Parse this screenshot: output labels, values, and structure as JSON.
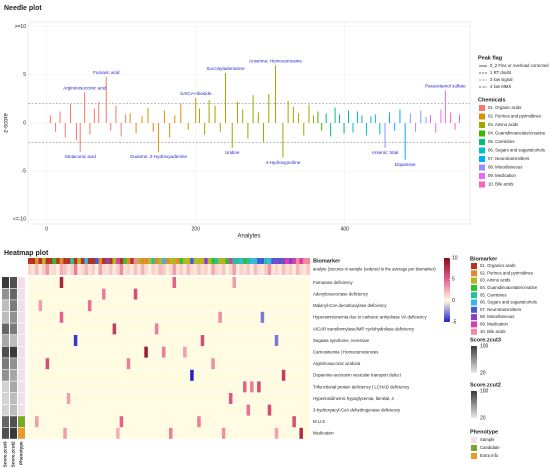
{
  "chart_data": [
    {
      "type": "needle",
      "title": "Needle plot",
      "xlabel": "Analytes",
      "ylabel": "z-score",
      "xlim": [
        -25,
        568
      ],
      "xticks": [
        0,
        200,
        400
      ],
      "ylim": [
        -10.5,
        10.5
      ],
      "yticks": [
        {
          "value": -10,
          "label": "<=-10"
        },
        -5,
        0,
        5,
        {
          "value": 10,
          "label": ">=10"
        }
      ],
      "hlines": [
        -2,
        2
      ],
      "grid": true,
      "flag_title": "Peak flag",
      "flags": [
        {
          "name": "0_2 Fine or overload corrected",
          "dash": "solid"
        },
        {
          "name": "1 RT doubt",
          "dash": "dashed"
        },
        {
          "name": "3 low signal",
          "dash": "dotted"
        },
        {
          "name": "4 low MMS",
          "dash": "dotdash"
        }
      ],
      "legend_title": "Chemicals",
      "series": [
        {
          "name": "01. Organic acids",
          "color": "#f8766d",
          "x": [
            5,
            12,
            18,
            25,
            32,
            40,
            45,
            51,
            58,
            64,
            70,
            80,
            86,
            93,
            100,
            106
          ],
          "values": [
            0.8,
            -0.9,
            1.2,
            -1.5,
            2.0,
            -1.8,
            -3.0,
            3.2,
            -1.2,
            1.5,
            2.2,
            4.8,
            -0.8,
            1.8,
            -1.4,
            0.9
          ]
        },
        {
          "name": "02. Purines and pyrimidines",
          "color": "#d89000",
          "x": [
            112,
            120,
            128,
            136,
            143,
            150,
            158,
            165,
            172,
            180,
            190,
            200
          ],
          "values": [
            1.0,
            -1.1,
            0.7,
            1.6,
            -0.9,
            -3.0,
            1.3,
            -1.5,
            0.8,
            2.0,
            -0.7,
            2.6
          ]
        },
        {
          "name": "03. Amino acids",
          "color": "#a3a500",
          "x": [
            205,
            212,
            218,
            226,
            233,
            240,
            249,
            256,
            263,
            270,
            277,
            284,
            291,
            298,
            307,
            317,
            324,
            331,
            338,
            345,
            352,
            358
          ],
          "values": [
            1.5,
            -1.2,
            2.4,
            1.8,
            -0.9,
            5.2,
            -2.6,
            2.2,
            1.4,
            -1.6,
            2.9,
            1.1,
            -2.0,
            3.0,
            6.0,
            -3.6,
            2.3,
            1.7,
            1.0,
            -1.3,
            1.9,
            0.8
          ]
        },
        {
          "name": "04. Guanidinoacetate/creatine",
          "color": "#39b600",
          "x": [
            364,
            369
          ],
          "values": [
            1.2,
            -0.8
          ]
        },
        {
          "name": "05. Carnitines",
          "color": "#00bf7d",
          "x": [
            375,
            381,
            387,
            393,
            399,
            405
          ],
          "values": [
            1.0,
            -1.4,
            1.6,
            0.9,
            -1.1,
            1.3
          ]
        },
        {
          "name": "06. Sugars and sugaralcohols",
          "color": "#00bfc4",
          "x": [
            411,
            417,
            423,
            429,
            435
          ],
          "values": [
            -1.0,
            1.2,
            0.8,
            -1.3,
            0.7
          ]
        },
        {
          "name": "07. Neurotransmitters",
          "color": "#00b0f6",
          "x": [
            441,
            447,
            460,
            467,
            474,
            481
          ],
          "values": [
            0.9,
            -1.2,
            1.1,
            -0.8,
            1.4,
            -3.8
          ]
        },
        {
          "name": "08. Miscellaneous",
          "color": "#9590ff",
          "x": [
            454,
            488,
            495,
            502,
            509
          ],
          "values": [
            -2.6,
            1.0,
            -0.9,
            1.3,
            0.6
          ]
        },
        {
          "name": "09. Medication",
          "color": "#e76bf3",
          "x": [
            515,
            522,
            529,
            535
          ],
          "values": [
            0.8,
            -1.0,
            1.4,
            3.4
          ]
        },
        {
          "name": "10. Bile acids",
          "color": "#ff62bc",
          "x": [
            542,
            548,
            554
          ],
          "values": [
            1.1,
            -0.7,
            0.9
          ]
        }
      ],
      "annotations": [
        {
          "text": "Fumaric acid",
          "x": 80,
          "y": 4.8
        },
        {
          "text": "Argininosuccinic acid",
          "x": 51,
          "y": 3.2
        },
        {
          "text": "Glutaconic acid",
          "x": 45,
          "y": -3.0
        },
        {
          "text": "Guanine; 2-Hydroxyadenine",
          "x": 150,
          "y": -3.0
        },
        {
          "text": "SAICA-riboside",
          "x": 200,
          "y": 2.6
        },
        {
          "text": "Succinyladenosine",
          "x": 240,
          "y": 5.2
        },
        {
          "text": "Uridine",
          "x": 249,
          "y": -2.6
        },
        {
          "text": "Anserine; Homocarnosine",
          "x": 307,
          "y": 6.0
        },
        {
          "text": "4-Hydroxyproline",
          "x": 317,
          "y": -3.6
        },
        {
          "text": "Arsenic; total",
          "x": 454,
          "y": -2.6
        },
        {
          "text": "Dopamine",
          "x": 481,
          "y": -3.8
        },
        {
          "text": "Paracetamol sulfate",
          "x": 535,
          "y": 3.4
        }
      ]
    },
    {
      "type": "heatmap",
      "title": "Heatmap plot",
      "biomarker_label": "Biomarker",
      "biomarker_groups": [
        0,
        0,
        1,
        0,
        2,
        0,
        0,
        3,
        0,
        1,
        0,
        0,
        4,
        0,
        2,
        0,
        5,
        0,
        0,
        6,
        1,
        0,
        7,
        0,
        2,
        8,
        0,
        3,
        1,
        0,
        9,
        2,
        1,
        1,
        2,
        4,
        1,
        2,
        5,
        1,
        2,
        2,
        1,
        3,
        2,
        2,
        6,
        2,
        2,
        2,
        7,
        2,
        3,
        4,
        2,
        2,
        3,
        8,
        4,
        4,
        5,
        3,
        4,
        5,
        5,
        6,
        6,
        4,
        5,
        6,
        7,
        6,
        7,
        8,
        7,
        8,
        9,
        8,
        9,
        9
      ],
      "analyte_label": "analyte (zscores in sample (ordered in the average per biomarker)",
      "analyte_values": [
        1.2,
        0.8,
        2.1,
        0.5,
        1.6,
        3.2,
        0.9,
        1.1,
        0.4,
        2.5,
        1.8,
        0.7,
        1.3,
        4.1,
        0.6,
        1.0,
        2.2,
        0.8,
        1.5,
        0.3,
        2.8,
        1.1,
        0.9,
        1.7,
        0.5,
        1.4,
        3.6,
        0.8,
        1.2,
        0.6,
        1.9,
        0.7,
        2.4,
        1.0,
        0.4,
        1.3,
        0.9,
        2.0,
        1.6,
        0.5,
        1.1,
        3.0,
        0.8,
        1.5,
        0.6,
        2.3,
        1.0,
        0.7,
        1.8,
        0.9,
        1.4,
        0.5,
        2.6,
        1.2,
        0.8,
        1.7,
        0.4,
        1.1,
        2.9,
        0.6,
        1.3,
        0.9,
        1.6,
        0.5,
        2.1,
        1.0,
        0.7,
        1.5,
        3.3,
        0.8,
        1.2,
        0.6,
        1.9,
        0.9,
        1.4,
        0.5,
        2.2,
        1.0,
        0.7,
        1.6
      ],
      "rows": [
        {
          "name": "Fumarase deficiency",
          "zcut3": 100,
          "zcut2": 90,
          "phenotype": "Sample",
          "cells": [
            [
              9,
              8.5
            ],
            [
              41,
              5
            ],
            [
              58,
              3
            ]
          ]
        },
        {
          "name": "Adenylosuccinase deficiency",
          "zcut3": 60,
          "zcut2": 80,
          "phenotype": "Sample",
          "cells": [
            [
              21,
              4
            ],
            [
              30,
              6
            ]
          ]
        },
        {
          "name": "Malonyl-CoA decarboxylase deficiency",
          "zcut3": 40,
          "zcut2": 70,
          "phenotype": "Sample",
          "cells": [
            [
              3,
              3
            ],
            [
              17,
              4.5
            ]
          ]
        },
        {
          "name": "Hyperammonemia due to carbonic anhydrase VA deficiency",
          "zcut3": 40,
          "zcut2": 60,
          "phenotype": "Sample",
          "cells": [
            [
              9,
              5
            ],
            [
              54,
              3.5
            ],
            [
              66,
              -3
            ]
          ]
        },
        {
          "name": "AICAR transformylase/IMP cyclohydrolase deficiency",
          "zcut3": 80,
          "zcut2": 70,
          "phenotype": "Sample",
          "cells": [
            [
              24,
              7
            ],
            [
              36,
              4
            ]
          ]
        },
        {
          "name": "Segawa syndrome, recessive",
          "zcut3": 50,
          "zcut2": 40,
          "phenotype": "Sample",
          "cells": [
            [
              13,
              -4.5
            ],
            [
              49,
              6
            ],
            [
              70,
              -3
            ]
          ]
        },
        {
          "name": "Carnosinemia | Homocarnosinosis",
          "zcut3": 90,
          "zcut2": 100,
          "phenotype": "Sample",
          "cells": [
            [
              33,
              9
            ],
            [
              38,
              4
            ],
            [
              44,
              3
            ]
          ]
        },
        {
          "name": "Argininosuccinic aciduria",
          "zcut3": 70,
          "zcut2": 60,
          "phenotype": "Sample",
          "cells": [
            [
              5,
              6
            ],
            [
              28,
              4
            ],
            [
              52,
              3.5
            ]
          ]
        },
        {
          "name": "Dopamine-serotonin vesicular transport defect",
          "zcut3": 60,
          "zcut2": 50,
          "phenotype": "Sample",
          "cells": [
            [
              46,
              -5
            ],
            [
              72,
              7
            ]
          ]
        },
        {
          "name": "Trifunctional protein deficiency | LCHAD deficiency",
          "zcut3": 30,
          "zcut2": 50,
          "phenotype": "Sample",
          "cells": [
            [
              61,
              5
            ],
            [
              63,
              4
            ],
            [
              65,
              6
            ]
          ]
        },
        {
          "name": "Hyperinsulinemic hypoglycemia, familial, 4",
          "zcut3": 30,
          "zcut2": 40,
          "phenotype": "Sample",
          "cells": [
            [
              11,
              3
            ],
            [
              57,
              5.5
            ]
          ]
        },
        {
          "name": "3-hydroxyacyl-CoA dehydrogenase deficiency",
          "zcut3": 30,
          "zcut2": 40,
          "phenotype": "Sample",
          "cells": [
            [
              62,
              4.5
            ],
            [
              68,
              6
            ]
          ]
        },
        {
          "name": "M.U.S",
          "zcut3": 80,
          "zcut2": 90,
          "phenotype": "Candidate",
          "cells": [
            [
              2,
              3
            ],
            [
              26,
              5
            ],
            [
              48,
              4
            ],
            [
              75,
              6
            ]
          ]
        },
        {
          "name": "Medication",
          "zcut3": 90,
          "zcut2": 100,
          "phenotype": "Extra info",
          "cells": [
            [
              10,
              3
            ],
            [
              25,
              2.5
            ],
            [
              40,
              4
            ],
            [
              55,
              3.5
            ],
            [
              70,
              2.8
            ],
            [
              77,
              8
            ]
          ]
        }
      ],
      "color_lim": [
        -5,
        10
      ],
      "color_ticks": [
        10,
        5,
        0,
        -5
      ],
      "groups_title": "Biomarker",
      "groups": [
        {
          "name": "01. Organics acids",
          "color": "#b5321f"
        },
        {
          "name": "02. Purines and pyrimidines",
          "color": "#e08a2c"
        },
        {
          "name": "03. Amino acids",
          "color": "#b5b520"
        },
        {
          "name": "04. Guanidinoacetate/creatine",
          "color": "#2fc02f"
        },
        {
          "name": "05. Carnitines",
          "color": "#27c09a"
        },
        {
          "name": "06. Sugars and sugaralcohols",
          "color": "#38b6e0"
        },
        {
          "name": "07. Neurotransmitters",
          "color": "#3d5bd6"
        },
        {
          "name": "08. Miscellaneous",
          "color": "#8b3fc4"
        },
        {
          "name": "09. Medication",
          "color": "#d63fae"
        },
        {
          "name": "10. Bile acids",
          "color": "#f08a9a"
        }
      ],
      "score_legends": [
        {
          "key": "zcut3",
          "title": "Score.zcut3",
          "lim": [
            20,
            100
          ],
          "ticks": [
            100,
            20
          ]
        },
        {
          "key": "zcut2",
          "title": "Score.zcut2",
          "lim": [
            20,
            100
          ],
          "ticks": [
            100,
            20
          ]
        }
      ],
      "phenotype_title": "Phenotype",
      "phenotypes": [
        {
          "name": "Sample",
          "color": "#f1dfe5"
        },
        {
          "name": "Candidate",
          "color": "#7aa62a"
        },
        {
          "name": "Extra info",
          "color": "#e89a2a"
        }
      ]
    }
  ]
}
